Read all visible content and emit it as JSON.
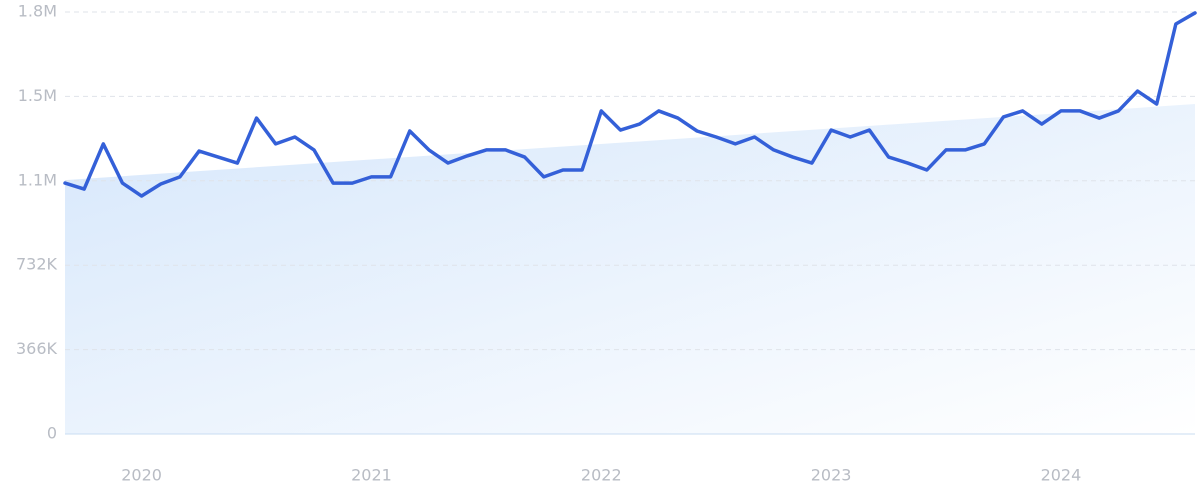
{
  "chart_data": {
    "type": "line",
    "categories": [
      null,
      null,
      null,
      null,
      "2020",
      null,
      null,
      null,
      null,
      null,
      null,
      null,
      null,
      null,
      null,
      null,
      "2021",
      null,
      null,
      null,
      null,
      null,
      null,
      null,
      null,
      null,
      null,
      null,
      "2022",
      null,
      null,
      null,
      null,
      null,
      null,
      null,
      null,
      null,
      null,
      null,
      "2023",
      null,
      null,
      null,
      null,
      null,
      null,
      null,
      null,
      null,
      null,
      null,
      "2024",
      null,
      null,
      null,
      null,
      null,
      null,
      null
    ],
    "series": [
      {
        "color": "#3460d8",
        "values": [
          1088000,
          1062000,
          1258000,
          1088000,
          1032000,
          1084000,
          1115000,
          1227000,
          1201000,
          1175000,
          1370000,
          1258000,
          1288000,
          1232000,
          1088000,
          1088000,
          1115000,
          1115000,
          1314000,
          1232000,
          1175000,
          1206000,
          1232000,
          1232000,
          1201000,
          1115000,
          1145000,
          1145000,
          1401000,
          1318000,
          1344000,
          1401000,
          1370000,
          1314000,
          1288000,
          1258000,
          1288000,
          1232000,
          1201000,
          1175000,
          1318000,
          1288000,
          1318000,
          1201000,
          1175000,
          1145000,
          1232000,
          1232000,
          1258000,
          1375000,
          1401000,
          1344000,
          1401000,
          1401000,
          1370000,
          1401000,
          1487000,
          1431000,
          1778000,
          1826000
        ]
      }
    ],
    "trendline": {
      "color": "#d6e7fb",
      "values": [
        1101000,
        1431000
      ]
    },
    "ylim": [
      0,
      1830000
    ],
    "yticks": [
      0,
      {
        "value": 366000,
        "label": "366K"
      },
      {
        "value": 732000,
        "label": "732K"
      },
      {
        "value": 1098000,
        "label": "1.1M"
      },
      {
        "value": 1464000,
        "label": "1.5M"
      },
      {
        "value": 1830000,
        "label": "1.8M"
      }
    ],
    "grid": true
  }
}
